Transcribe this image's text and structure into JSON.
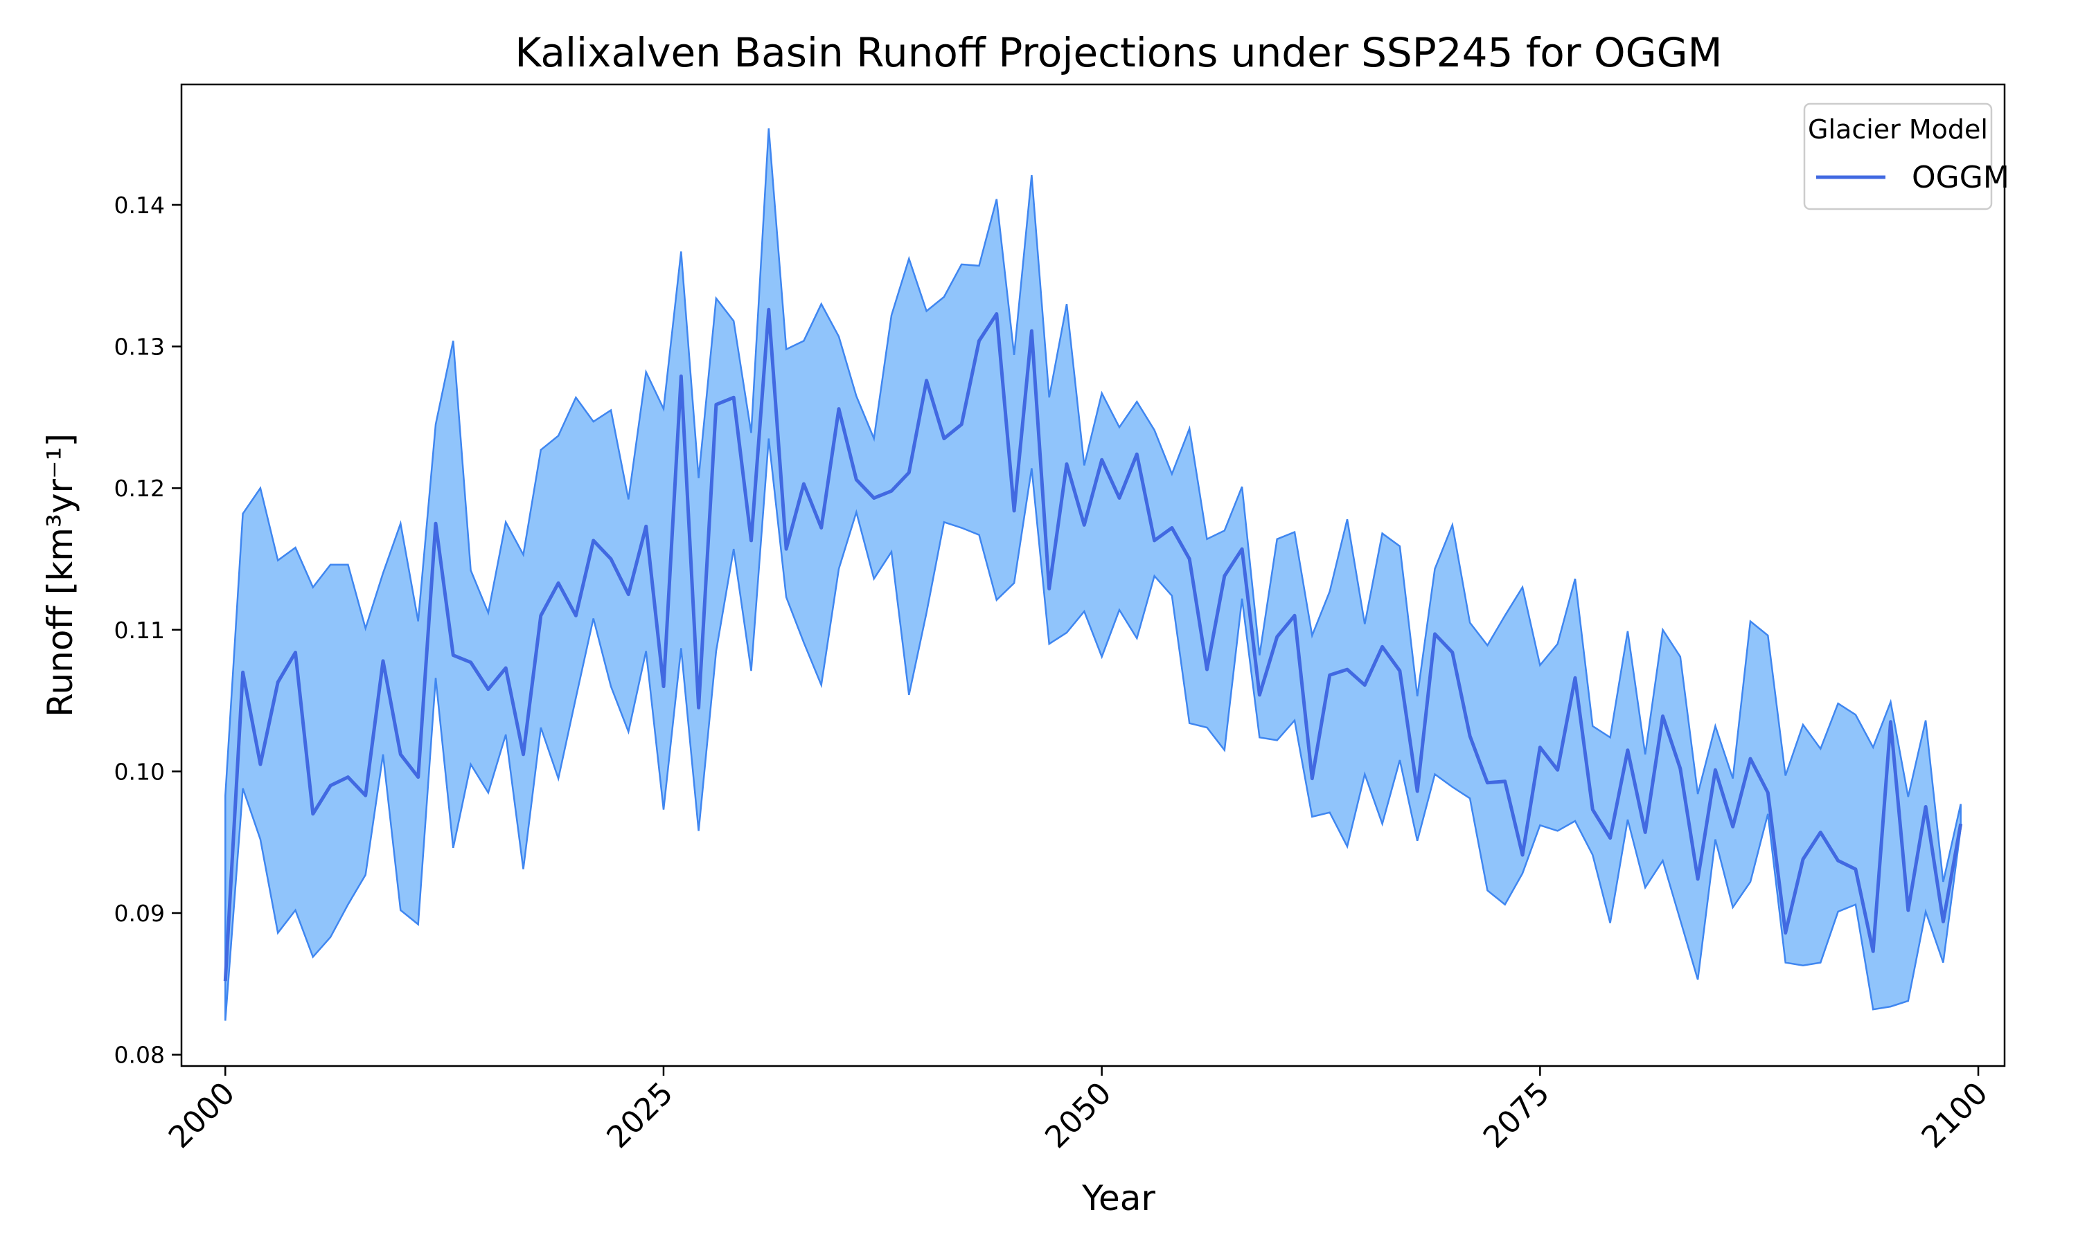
{
  "chart_data": {
    "type": "line",
    "title": "Kalixalven Basin Runoff Projections under SSP245 for OGGM",
    "xlabel": "Year",
    "ylabel": "Runoff [km³yr⁻¹]",
    "xlim": [
      1997.5,
      2101.5
    ],
    "ylim": [
      0.0792,
      0.1485
    ],
    "xticks": [
      2000,
      2025,
      2050,
      2075,
      2100
    ],
    "xtick_labels": [
      "2000",
      "2025",
      "2050",
      "2075",
      "2100"
    ],
    "yticks": [
      0.08,
      0.09,
      0.1,
      0.11,
      0.12,
      0.13,
      0.14
    ],
    "ytick_labels": [
      "0.08",
      "0.09",
      "0.10",
      "0.11",
      "0.12",
      "0.13",
      "0.14"
    ],
    "grid": false,
    "legend": {
      "title": "Glacier Model",
      "placement": "top-right",
      "entries": [
        "OGGM"
      ]
    },
    "colors": {
      "line": "#4169e1",
      "band": "#90c4fb",
      "band_edge": "#3f86f0"
    },
    "x_start": 2000,
    "series": [
      {
        "name": "OGGM",
        "values": [
          0.0852,
          0.107,
          0.1005,
          0.1063,
          0.1084,
          0.097,
          0.099,
          0.0996,
          0.0983,
          0.1078,
          0.1012,
          0.0996,
          0.1175,
          0.1082,
          0.1077,
          0.1058,
          0.1073,
          0.1012,
          0.111,
          0.1133,
          0.111,
          0.1163,
          0.115,
          0.1125,
          0.1173,
          0.106,
          0.1279,
          0.1045,
          0.1259,
          0.1264,
          0.1163,
          0.1326,
          0.1157,
          0.1203,
          0.1172,
          0.1256,
          0.1206,
          0.1193,
          0.1198,
          0.1211,
          0.1276,
          0.1235,
          0.1245,
          0.1304,
          0.1323,
          0.1184,
          0.1311,
          0.1129,
          0.1217,
          0.1174,
          0.122,
          0.1193,
          0.1224,
          0.1163,
          0.1172,
          0.115,
          0.1072,
          0.1138,
          0.1157,
          0.1054,
          0.1095,
          0.111,
          0.0995,
          0.1068,
          0.1072,
          0.1061,
          0.1088,
          0.1071,
          0.0986,
          0.1097,
          0.1084,
          0.1025,
          0.0992,
          0.0993,
          0.0941,
          0.1017,
          0.1001,
          0.1066,
          0.0973,
          0.0953,
          0.1015,
          0.0957,
          0.1039,
          0.1002,
          0.0924,
          0.1001,
          0.0961,
          0.1009,
          0.0985,
          0.0886,
          0.0938,
          0.0957,
          0.0937,
          0.0931,
          0.0873,
          0.1035,
          0.0902,
          0.0975,
          0.0894,
          0.0963
        ]
      }
    ],
    "band": {
      "upper": [
        0.0983,
        0.1182,
        0.12,
        0.1149,
        0.1158,
        0.113,
        0.1146,
        0.1146,
        0.1101,
        0.114,
        0.1175,
        0.1106,
        0.1245,
        0.1304,
        0.1142,
        0.1112,
        0.1176,
        0.1153,
        0.1227,
        0.1237,
        0.1264,
        0.1247,
        0.1255,
        0.1192,
        0.1282,
        0.1256,
        0.1367,
        0.1207,
        0.1334,
        0.1318,
        0.1239,
        0.1454,
        0.1298,
        0.1304,
        0.133,
        0.1307,
        0.1265,
        0.1235,
        0.1322,
        0.1362,
        0.1325,
        0.1335,
        0.1358,
        0.1357,
        0.1404,
        0.1294,
        0.1421,
        0.1264,
        0.133,
        0.1216,
        0.1267,
        0.1243,
        0.1261,
        0.1241,
        0.121,
        0.1242,
        0.1164,
        0.117,
        0.1201,
        0.1082,
        0.1164,
        0.1169,
        0.1096,
        0.1127,
        0.1178,
        0.1104,
        0.1168,
        0.1159,
        0.1053,
        0.1143,
        0.1174,
        0.1105,
        0.1089,
        0.111,
        0.113,
        0.1075,
        0.109,
        0.1136,
        0.1032,
        0.1024,
        0.1099,
        0.1012,
        0.11,
        0.1081,
        0.0984,
        0.1032,
        0.0995,
        0.1106,
        0.1096,
        0.0997,
        0.1033,
        0.1016,
        0.1048,
        0.104,
        0.1017,
        0.1049,
        0.0982,
        0.1036,
        0.0922,
        0.0977
      ],
      "lower": [
        0.0824,
        0.0988,
        0.0952,
        0.0886,
        0.0902,
        0.0869,
        0.0883,
        0.0906,
        0.0927,
        0.1012,
        0.0902,
        0.0892,
        0.1066,
        0.0946,
        0.1005,
        0.0985,
        0.1026,
        0.0931,
        0.1031,
        0.0995,
        0.1052,
        0.1108,
        0.106,
        0.1028,
        0.1085,
        0.0973,
        0.1087,
        0.0958,
        0.1085,
        0.1157,
        0.1071,
        0.1235,
        0.1123,
        0.1091,
        0.1061,
        0.1143,
        0.1183,
        0.1136,
        0.1155,
        0.1054,
        0.1112,
        0.1176,
        0.1172,
        0.1167,
        0.1121,
        0.1133,
        0.1214,
        0.109,
        0.1098,
        0.1113,
        0.1081,
        0.1114,
        0.1094,
        0.1138,
        0.1124,
        0.1034,
        0.1031,
        0.1015,
        0.1122,
        0.1024,
        0.1022,
        0.1036,
        0.0968,
        0.0971,
        0.0947,
        0.0998,
        0.0963,
        0.1008,
        0.0951,
        0.0998,
        0.0989,
        0.0981,
        0.0916,
        0.0906,
        0.0928,
        0.0962,
        0.0958,
        0.0965,
        0.0941,
        0.0893,
        0.0966,
        0.0918,
        0.0937,
        0.0895,
        0.0853,
        0.0952,
        0.0904,
        0.0922,
        0.097,
        0.0865,
        0.0863,
        0.0865,
        0.0901,
        0.0906,
        0.0832,
        0.0834,
        0.0838,
        0.0901,
        0.0865,
        0.096
      ]
    }
  }
}
